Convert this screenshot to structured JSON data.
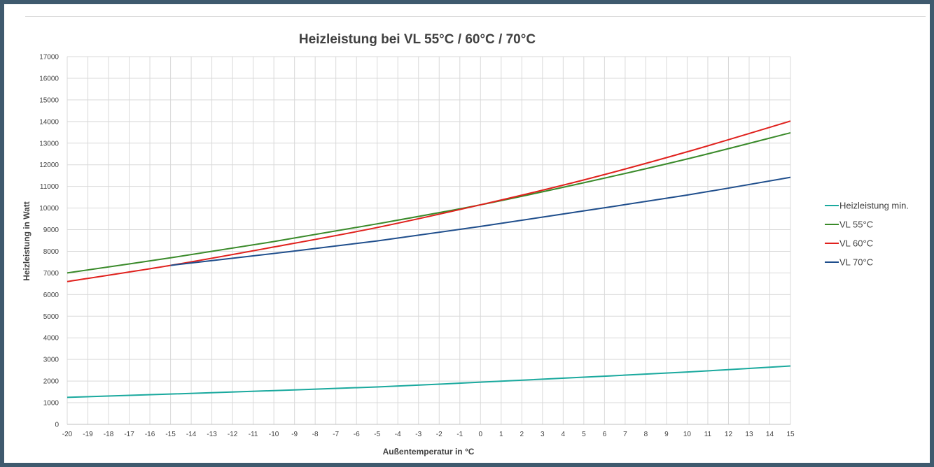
{
  "chart_data": {
    "type": "line",
    "title": "Heizleistung bei VL 55°C / 60°C / 70°C",
    "xlabel": "Außentemperatur in °C",
    "ylabel": "Heizleistung in Watt",
    "xlim": [
      -20,
      15
    ],
    "ylim": [
      0,
      17000
    ],
    "x_ticks": [
      -20,
      -19,
      -18,
      -17,
      -16,
      -15,
      -14,
      -13,
      -12,
      -11,
      -10,
      -9,
      -8,
      -7,
      -6,
      -5,
      -4,
      -3,
      -2,
      -1,
      0,
      1,
      2,
      3,
      4,
      5,
      6,
      7,
      8,
      9,
      10,
      11,
      12,
      13,
      14,
      15
    ],
    "y_ticks": [
      0,
      1000,
      2000,
      3000,
      4000,
      5000,
      6000,
      7000,
      8000,
      9000,
      10000,
      11000,
      12000,
      13000,
      14000,
      15000,
      16000,
      17000
    ],
    "grid": true,
    "legend_position": "right",
    "series": [
      {
        "name": "Heizleistung min.",
        "color": "#1aa99e",
        "x": [
          -20,
          -15,
          -10,
          -5,
          0,
          5,
          10,
          15
        ],
        "values": [
          1250,
          1400,
          1560,
          1730,
          1950,
          2180,
          2420,
          2700
        ]
      },
      {
        "name": "VL 55°C",
        "color": "#3a8a2a",
        "x": [
          -20,
          -15,
          -10,
          -5,
          0,
          5,
          10,
          15
        ],
        "values": [
          7000,
          7700,
          8450,
          9270,
          10150,
          11170,
          12270,
          13480
        ]
      },
      {
        "name": "VL 60°C",
        "color": "#e0211d",
        "x": [
          -20,
          -15,
          -10,
          -5,
          0,
          5,
          10,
          15
        ],
        "values": [
          6600,
          7350,
          8200,
          9100,
          10150,
          11300,
          12600,
          14020
        ]
      },
      {
        "name": "VL 70°C",
        "color": "#1f4e8c",
        "x": [
          -15,
          -10,
          -5,
          0,
          5,
          10,
          15
        ],
        "values": [
          7350,
          7900,
          8480,
          9150,
          9870,
          10600,
          11420
        ]
      }
    ]
  }
}
